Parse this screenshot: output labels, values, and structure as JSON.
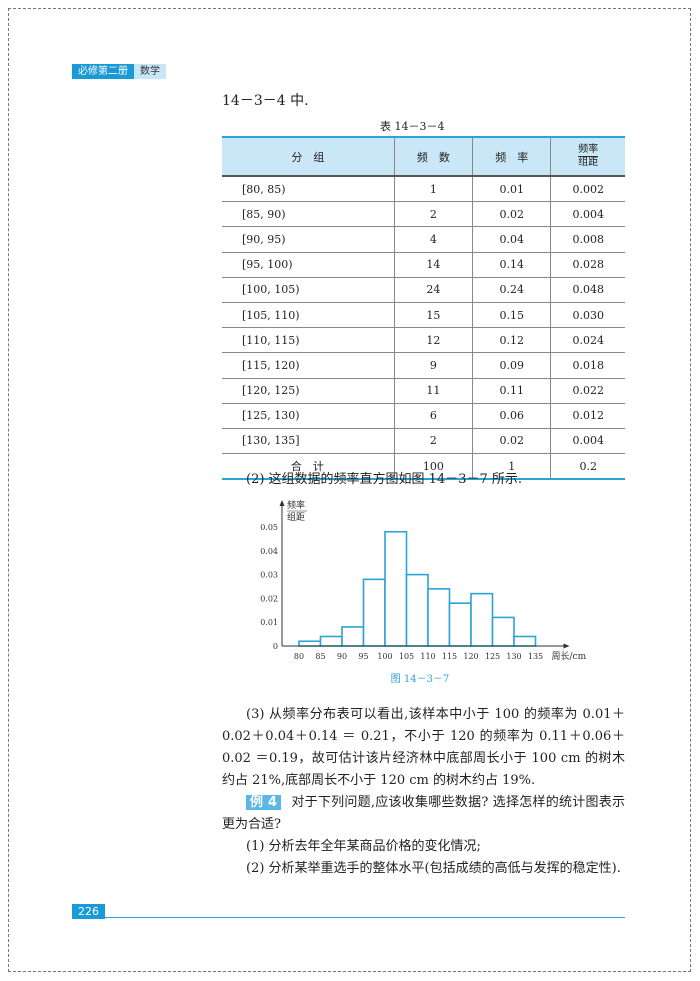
{
  "header": {
    "book": "必修第二册",
    "subject": "数学"
  },
  "intro": "14－3－4 中.",
  "table": {
    "caption": "表 14－3－4",
    "headers": [
      "分　组",
      "频　数",
      "频　率"
    ],
    "header_frac": {
      "num": "频率",
      "den": "组距"
    },
    "rows": [
      [
        "[80, 85)",
        "1",
        "0.01",
        "0.002"
      ],
      [
        "[85, 90)",
        "2",
        "0.02",
        "0.004"
      ],
      [
        "[90, 95)",
        "4",
        "0.04",
        "0.008"
      ],
      [
        "[95, 100)",
        "14",
        "0.14",
        "0.028"
      ],
      [
        "[100, 105)",
        "24",
        "0.24",
        "0.048"
      ],
      [
        "[105, 110)",
        "15",
        "0.15",
        "0.030"
      ],
      [
        "[110, 115)",
        "12",
        "0.12",
        "0.024"
      ],
      [
        "[115, 120)",
        "9",
        "0.09",
        "0.018"
      ],
      [
        "[120, 125)",
        "11",
        "0.11",
        "0.022"
      ],
      [
        "[125, 130)",
        "6",
        "0.06",
        "0.012"
      ],
      [
        "[130, 135]",
        "2",
        "0.02",
        "0.004"
      ],
      [
        "合　计",
        "100",
        "1",
        "0.2"
      ]
    ]
  },
  "part2": "(2) 这组数据的频率直方图如图 14－3－7 所示.",
  "chart_data": {
    "type": "bar",
    "ylabel_num": "频率",
    "ylabel_den": "组距",
    "xlabel": "周长/cm",
    "caption": "图 14－3－7",
    "x_ticks": [
      80,
      85,
      90,
      95,
      100,
      105,
      110,
      115,
      120,
      125,
      130,
      135
    ],
    "y_ticks": [
      "0",
      "0.01",
      "0.02",
      "0.03",
      "0.04",
      "0.05"
    ],
    "bins": [
      [
        80,
        85
      ],
      [
        85,
        90
      ],
      [
        90,
        95
      ],
      [
        95,
        100
      ],
      [
        100,
        105
      ],
      [
        105,
        110
      ],
      [
        110,
        115
      ],
      [
        115,
        120
      ],
      [
        120,
        125
      ],
      [
        125,
        130
      ],
      [
        130,
        135
      ]
    ],
    "values": [
      0.002,
      0.004,
      0.008,
      0.028,
      0.048,
      0.03,
      0.024,
      0.018,
      0.022,
      0.012,
      0.004
    ],
    "ylim": [
      0,
      0.05
    ],
    "bar_color": "#2ba3d7"
  },
  "part3": "(3) 从频率分布表可以看出,该样本中小于 100 的频率为 0.01＋0.02＋0.04＋0.14 ＝ 0.21，不小于 120 的频率为 0.11＋0.06＋0.02 ＝0.19，故可估计该片经济林中底部周长小于 100 cm 的树木约占 21%,底部周长不小于 120 cm 的树木约占 19%.",
  "example": {
    "label": "例 4",
    "text": "对于下列问题,应该收集哪些数据? 选择怎样的统计图表示更为合适?",
    "items": [
      "(1) 分析去年全年某商品价格的变化情况;",
      "(2) 分析某举重选手的整体水平(包括成绩的高低与发挥的稳定性)."
    ]
  },
  "page_number": "226"
}
